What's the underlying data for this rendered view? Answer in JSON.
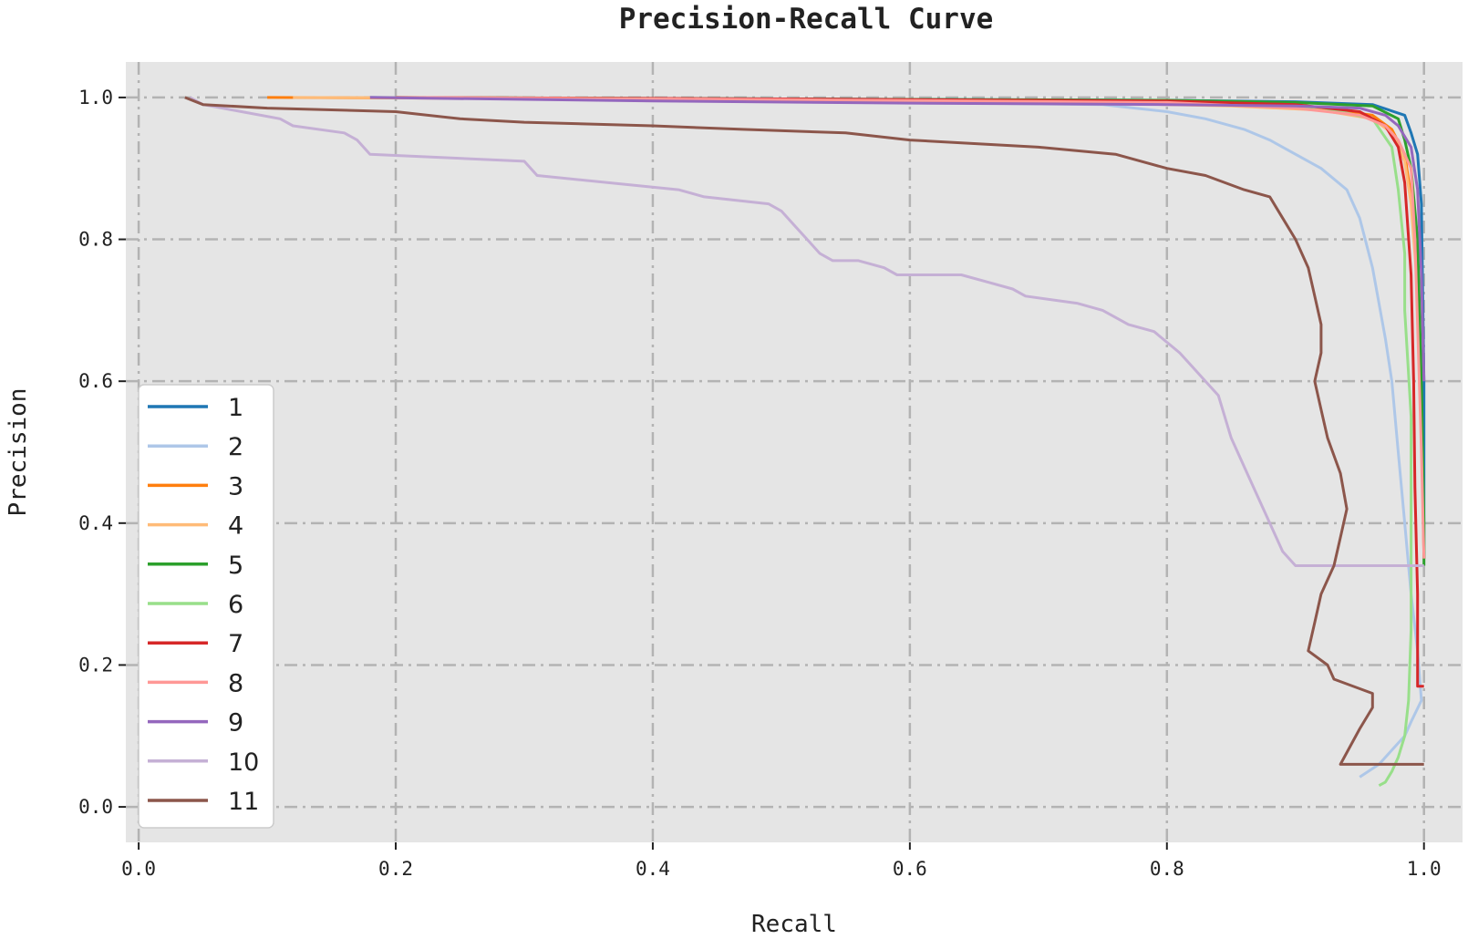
{
  "chart_data": {
    "type": "line",
    "title": "Precision-Recall Curve",
    "xlabel": "Recall",
    "ylabel": "Precision",
    "xlim": [
      -0.01,
      1.03
    ],
    "ylim": [
      -0.05,
      1.05
    ],
    "xticks": [
      0.0,
      0.2,
      0.4,
      0.6,
      0.8,
      1.0
    ],
    "yticks": [
      0.0,
      0.2,
      0.4,
      0.6,
      0.8,
      1.0
    ],
    "xtick_labels": [
      "0.0",
      "0.2",
      "0.4",
      "0.6",
      "0.8",
      "1.0"
    ],
    "ytick_labels": [
      "0.0",
      "0.2",
      "0.4",
      "0.6",
      "0.8",
      "1.0"
    ],
    "grid": true,
    "legend_position": "lower-left",
    "series": [
      {
        "name": "1",
        "color": "#1f77b4",
        "x": [
          0.18,
          0.5,
          0.8,
          0.9,
          0.96,
          0.985,
          0.99,
          0.995,
          0.998,
          1.0,
          1.0
        ],
        "y": [
          1.0,
          0.998,
          0.996,
          0.994,
          0.99,
          0.975,
          0.95,
          0.92,
          0.85,
          0.6,
          0.35
        ]
      },
      {
        "name": "2",
        "color": "#aec7e8",
        "x": [
          0.18,
          0.5,
          0.75,
          0.8,
          0.83,
          0.86,
          0.88,
          0.9,
          0.92,
          0.94,
          0.95,
          0.96,
          0.97,
          0.975,
          0.98,
          0.985,
          0.99,
          0.995,
          0.998,
          0.99,
          0.985,
          0.975,
          0.965,
          0.95
        ],
        "y": [
          1.0,
          0.995,
          0.99,
          0.98,
          0.97,
          0.955,
          0.94,
          0.92,
          0.9,
          0.87,
          0.83,
          0.76,
          0.66,
          0.6,
          0.5,
          0.4,
          0.3,
          0.22,
          0.15,
          0.12,
          0.1,
          0.08,
          0.06,
          0.042
        ]
      },
      {
        "name": "3",
        "color": "#ff7f0e",
        "x": [
          0.1,
          0.4,
          0.7,
          0.85,
          0.92,
          0.96,
          0.975,
          0.985,
          0.99,
          0.995,
          0.998,
          1.0
        ],
        "y": [
          1.0,
          0.998,
          0.995,
          0.99,
          0.985,
          0.975,
          0.955,
          0.92,
          0.86,
          0.75,
          0.55,
          0.35
        ]
      },
      {
        "name": "4",
        "color": "#ffbb78",
        "x": [
          0.12,
          0.4,
          0.7,
          0.85,
          0.92,
          0.96,
          0.975,
          0.985,
          0.99,
          0.995,
          0.998,
          1.0
        ],
        "y": [
          1.0,
          0.998,
          0.994,
          0.988,
          0.982,
          0.97,
          0.95,
          0.91,
          0.85,
          0.73,
          0.56,
          0.36
        ]
      },
      {
        "name": "5",
        "color": "#2ca02c",
        "x": [
          0.2,
          0.5,
          0.8,
          0.9,
          0.96,
          0.98,
          0.985,
          0.99,
          0.995,
          0.998,
          1.0,
          1.0
        ],
        "y": [
          1.0,
          0.998,
          0.996,
          0.993,
          0.988,
          0.97,
          0.94,
          0.9,
          0.8,
          0.6,
          0.4,
          0.34
        ]
      },
      {
        "name": "6",
        "color": "#98df8a",
        "x": [
          0.2,
          0.5,
          0.8,
          0.92,
          0.96,
          0.975,
          0.98,
          0.985,
          0.985,
          0.99,
          0.99,
          0.99,
          0.988,
          0.985,
          0.98,
          0.975,
          0.97,
          0.965
        ],
        "y": [
          1.0,
          0.997,
          0.993,
          0.986,
          0.97,
          0.93,
          0.87,
          0.78,
          0.7,
          0.55,
          0.4,
          0.25,
          0.15,
          0.1,
          0.07,
          0.05,
          0.035,
          0.03
        ]
      },
      {
        "name": "7",
        "color": "#d62728",
        "x": [
          0.2,
          0.5,
          0.8,
          0.9,
          0.95,
          0.97,
          0.98,
          0.985,
          0.99,
          0.992,
          0.993,
          0.995,
          0.995,
          1.0
        ],
        "y": [
          1.0,
          0.998,
          0.995,
          0.99,
          0.98,
          0.96,
          0.93,
          0.88,
          0.75,
          0.6,
          0.45,
          0.3,
          0.17,
          0.17
        ]
      },
      {
        "name": "8",
        "color": "#ff9896",
        "x": [
          0.2,
          0.5,
          0.8,
          0.9,
          0.95,
          0.97,
          0.98,
          0.99,
          0.993,
          0.995,
          0.998,
          1.0
        ],
        "y": [
          1.0,
          0.997,
          0.993,
          0.985,
          0.975,
          0.96,
          0.94,
          0.9,
          0.8,
          0.68,
          0.5,
          0.35
        ]
      },
      {
        "name": "9",
        "color": "#9467bd",
        "x": [
          0.18,
          0.4,
          0.6,
          0.8,
          0.9,
          0.95,
          0.97,
          0.98,
          0.99,
          0.995,
          0.998,
          1.0
        ],
        "y": [
          1.0,
          0.995,
          0.992,
          0.99,
          0.988,
          0.985,
          0.975,
          0.96,
          0.93,
          0.87,
          0.75,
          0.6
        ]
      },
      {
        "name": "10",
        "color": "#c5b0d5",
        "x": [
          0.04,
          0.05,
          0.08,
          0.11,
          0.12,
          0.16,
          0.17,
          0.18,
          0.3,
          0.31,
          0.42,
          0.44,
          0.49,
          0.5,
          0.51,
          0.52,
          0.53,
          0.54,
          0.56,
          0.58,
          0.59,
          0.64,
          0.66,
          0.68,
          0.69,
          0.73,
          0.75,
          0.77,
          0.79,
          0.81,
          0.82,
          0.83,
          0.84,
          0.85,
          0.86,
          0.87,
          0.88,
          0.89,
          0.9,
          0.95,
          1.0
        ],
        "y": [
          1.0,
          0.99,
          0.98,
          0.97,
          0.96,
          0.95,
          0.94,
          0.92,
          0.91,
          0.89,
          0.87,
          0.86,
          0.85,
          0.84,
          0.82,
          0.8,
          0.78,
          0.77,
          0.77,
          0.76,
          0.75,
          0.75,
          0.74,
          0.73,
          0.72,
          0.71,
          0.7,
          0.68,
          0.67,
          0.64,
          0.62,
          0.6,
          0.58,
          0.52,
          0.48,
          0.44,
          0.4,
          0.36,
          0.34,
          0.34,
          0.34
        ]
      },
      {
        "name": "11",
        "color": "#8c564b",
        "x": [
          0.036,
          0.05,
          0.1,
          0.2,
          0.25,
          0.3,
          0.4,
          0.47,
          0.55,
          0.6,
          0.65,
          0.7,
          0.76,
          0.8,
          0.83,
          0.86,
          0.88,
          0.89,
          0.9,
          0.91,
          0.915,
          0.92,
          0.92,
          0.915,
          0.92,
          0.925,
          0.935,
          0.94,
          0.935,
          0.93,
          0.92,
          0.915,
          0.91,
          0.925,
          0.93,
          0.96,
          0.96,
          0.95,
          0.935,
          1.0
        ],
        "y": [
          1.0,
          0.99,
          0.985,
          0.98,
          0.97,
          0.965,
          0.96,
          0.955,
          0.95,
          0.94,
          0.935,
          0.93,
          0.92,
          0.9,
          0.89,
          0.87,
          0.86,
          0.83,
          0.8,
          0.76,
          0.72,
          0.68,
          0.64,
          0.6,
          0.56,
          0.52,
          0.47,
          0.42,
          0.38,
          0.34,
          0.3,
          0.26,
          0.22,
          0.2,
          0.18,
          0.16,
          0.14,
          0.11,
          0.06,
          0.06
        ]
      }
    ]
  }
}
